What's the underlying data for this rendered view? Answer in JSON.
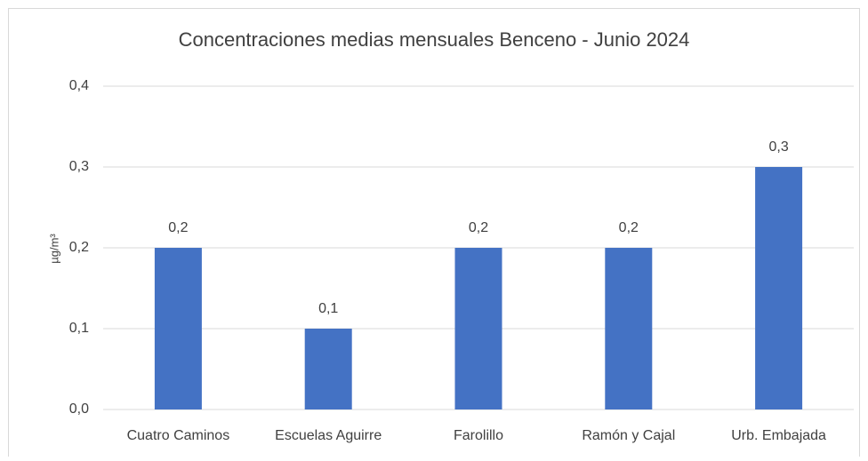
{
  "chart_data": {
    "type": "bar",
    "title": "Concentraciones medias mensuales Benceno - Junio 2024",
    "y_label": "µg/m³",
    "categories": [
      "Cuatro Caminos",
      "Escuelas Aguirre",
      "Farolillo",
      "Ramón y Cajal",
      "Urb. Embajada"
    ],
    "values": [
      0.2,
      0.1,
      0.2,
      0.2,
      0.3
    ],
    "value_labels": [
      "0,2",
      "0,1",
      "0,2",
      "0,2",
      "0,3"
    ],
    "color": "#4472c4",
    "ylim": [
      0,
      0.4
    ],
    "yticks": [
      {
        "value": 0,
        "label": "0,0"
      },
      {
        "value": 0.1,
        "label": "0,1"
      },
      {
        "value": 0.2,
        "label": "0,2"
      },
      {
        "value": 0.3,
        "label": "0,3"
      },
      {
        "value": 0.4,
        "label": "0,4"
      }
    ],
    "grid": true
  }
}
